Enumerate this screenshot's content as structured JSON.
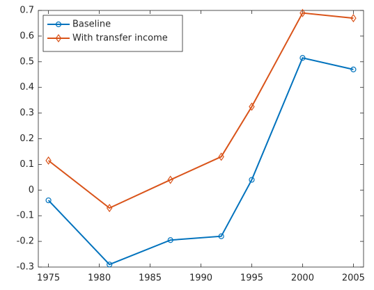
{
  "chart_data": {
    "type": "line",
    "x": [
      1975,
      1981,
      1987,
      1992,
      1995,
      2000,
      2005
    ],
    "series": [
      {
        "name": "Baseline",
        "color": "#0072BD",
        "marker": "circle",
        "values": [
          -0.04,
          -0.29,
          -0.195,
          -0.18,
          0.04,
          0.515,
          0.47
        ]
      },
      {
        "name": "With transfer income",
        "color": "#D95319",
        "marker": "diamond",
        "values": [
          0.115,
          -0.07,
          0.04,
          0.13,
          0.325,
          0.69,
          0.67
        ]
      }
    ],
    "xlim": [
      1974,
      2006
    ],
    "xticks": [
      1975,
      1980,
      1985,
      1990,
      1995,
      2000,
      2005
    ],
    "ylim": [
      -0.3,
      0.7
    ],
    "yticks": [
      -0.3,
      -0.2,
      -0.1,
      0,
      0.1,
      0.2,
      0.3,
      0.4,
      0.5,
      0.6,
      0.7
    ],
    "grid": false,
    "legend": "upper-left"
  }
}
